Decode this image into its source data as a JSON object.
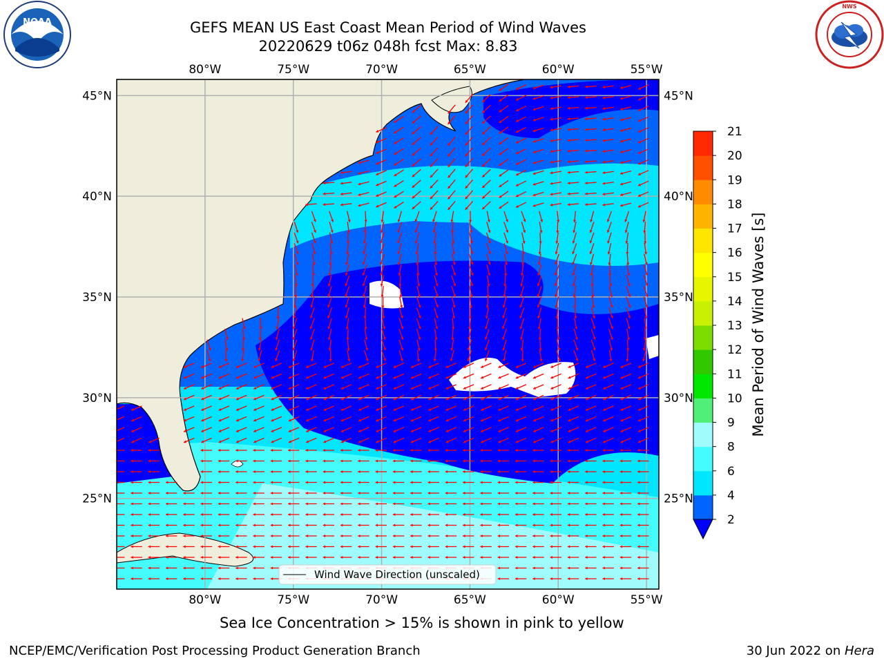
{
  "header": {
    "title": "GEFS MEAN US East Coast Mean Period of Wind Waves",
    "subtitle": "20220629 t06z 048h fcst   Max: 8.83"
  },
  "logos": {
    "left": "noaa-logo",
    "right": "nws-logo",
    "right_text": "NATIONAL WEATHER SERVICE"
  },
  "map": {
    "lon_labels": [
      "80°W",
      "75°W",
      "70°W",
      "65°W",
      "60°W",
      "55°W"
    ],
    "lat_labels": [
      "45°N",
      "40°N",
      "35°N",
      "30°N",
      "25°N"
    ],
    "lon_range": [
      -85,
      -54.3
    ],
    "lat_range": [
      20.5,
      45.8
    ],
    "legend_label": "Wind Wave Direction (unscaled)",
    "arrow_color": "#ff0000",
    "land_color": "#efeedd"
  },
  "colorbar": {
    "label": "Mean Period of Wind Waves [s]",
    "ticks": [
      "2",
      "4",
      "6",
      "8",
      "9",
      "10",
      "11",
      "12",
      "13",
      "14",
      "15",
      "16",
      "17",
      "18",
      "19",
      "20",
      "21"
    ],
    "colors": [
      "#0064ff",
      "#00e6ff",
      "#45fcfc",
      "#a0fcfc",
      "#50f078",
      "#00e600",
      "#32c800",
      "#7ddc00",
      "#c8f000",
      "#e6f500",
      "#ffff00",
      "#ffe600",
      "#ffb400",
      "#ff8c00",
      "#ff5000",
      "#ff2800"
    ],
    "under_color": "#0000ff"
  },
  "caption": "Sea Ice Concentration > 15% is shown in pink to yellow",
  "footer": {
    "left": "NCEP/EMC/Verification Post Processing Product Generation Branch",
    "right_prefix": "30 Jun 2022 on ",
    "right_machine": "Hera"
  }
}
